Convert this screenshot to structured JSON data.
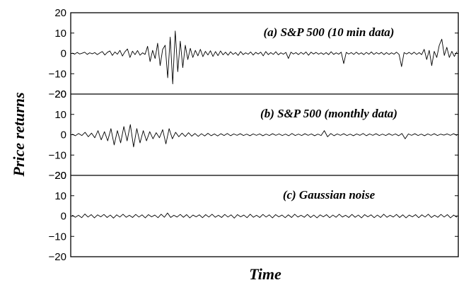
{
  "chart_data": {
    "type": "line",
    "xlabel": "Time",
    "ylabel": "Price returns",
    "panels": [
      {
        "title": "(a) S&P 500 (10 min data)",
        "ylim": [
          -20,
          20
        ],
        "yticks": [
          "20",
          "10",
          "0",
          "−10",
          "−20"
        ],
        "series": [
          {
            "values": [
              0.2,
              -0.4,
              0.5,
              -0.3,
              0.1,
              0.6,
              -0.5,
              0.3,
              -0.2,
              0.4,
              -0.6,
              0.2,
              0.9,
              -0.8,
              0.5,
              1.2,
              -1,
              0.7,
              -0.4,
              1.5,
              -1.3,
              0.8,
              2.2,
              -2,
              1.1,
              -0.6,
              1.4,
              -0.9,
              0.3,
              -0.5,
              3.5,
              -4,
              1.5,
              -2.5,
              5,
              -6,
              2,
              4,
              -12,
              8,
              -15,
              11,
              -9,
              6,
              -7,
              4,
              -3,
              2.5,
              -2,
              1.5,
              -1.2,
              2,
              -1.6,
              1,
              -0.8,
              1.3,
              -1.5,
              0.9,
              -1.1,
              1.2,
              -0.7,
              0.6,
              -0.9,
              0.8,
              -0.5,
              0.4,
              -1,
              0.9,
              -0.6,
              0.3,
              -0.4,
              0.7,
              -0.8,
              0.5,
              -0.3,
              0.6,
              -1.2,
              0.9,
              -0.6,
              0.4,
              -0.5,
              0.8,
              -0.7,
              0.3,
              -0.4,
              0.5,
              -2.5,
              0.6,
              -0.3,
              0.4,
              -0.6,
              0.5,
              -0.4,
              0.7,
              -0.9,
              0.6,
              -0.3,
              0.5,
              -0.4,
              0.3,
              -0.5,
              0.4,
              -0.6,
              0.8,
              -0.5,
              0.3,
              -0.4,
              0.6,
              -5,
              0.5,
              -0.3,
              0.4,
              -0.5,
              0.6,
              -0.4,
              0.3,
              -0.6,
              0.5,
              -0.4,
              0.7,
              -0.5,
              0.4,
              -0.3,
              0.5,
              -0.6,
              0.4,
              -0.5,
              0.3,
              -0.4,
              0.6,
              -0.5,
              -6.5,
              0.4,
              -0.3,
              0.5,
              -0.4,
              0.6,
              -0.5,
              0.4,
              -0.6,
              2,
              -3,
              1.5,
              -6,
              1,
              -2,
              4,
              7,
              -1,
              3,
              -2,
              1,
              -1.5,
              0.8
            ]
          }
        ]
      },
      {
        "title": "(b) S&P 500 (monthly data)",
        "ylim": [
          -20,
          20
        ],
        "yticks": [
          "20",
          "10",
          "0",
          "−10",
          "−20"
        ],
        "series": [
          {
            "values": [
              0.3,
              -0.5,
              0.6,
              -0.4,
              1.2,
              -1,
              0.8,
              -1.5,
              2,
              -2.5,
              1.5,
              -3,
              3,
              -5,
              2,
              -4,
              4,
              -3,
              5,
              -6,
              3,
              -4,
              2,
              -3,
              1.5,
              -2,
              1,
              -1.5,
              2.5,
              -4.5,
              3,
              -2,
              1.2,
              -1,
              0.8,
              -0.9,
              1,
              -0.7,
              0.6,
              -0.8,
              0.5,
              -0.6,
              0.7,
              -0.5,
              0.4,
              -0.6,
              0.5,
              -0.4,
              0.6,
              -0.5,
              0.4,
              -0.3,
              0.5,
              -0.4,
              0.3,
              -0.5,
              0.4,
              -0.3,
              0.4,
              -0.5,
              0.3,
              -0.4,
              0.5,
              -0.3,
              0.4,
              -0.4,
              0.3,
              -0.5,
              0.6,
              -0.4,
              0.3,
              -0.4,
              0.5,
              -0.3,
              0.4,
              -0.5,
              0.3,
              -0.4,
              2,
              -1,
              0.6,
              -0.5,
              0.4,
              -0.3,
              0.5,
              -0.4,
              0.3,
              -0.5,
              0.4,
              -0.3,
              0.6,
              -0.5,
              0.4,
              -0.3,
              0.5,
              -0.4,
              0.3,
              -0.4,
              0.5,
              -0.3,
              0.4,
              -0.5,
              0.6,
              -2,
              0.4,
              -0.3,
              0.5,
              -0.4,
              0.3,
              -0.5,
              0.4,
              -0.3,
              0.5,
              -0.4,
              0.3,
              -0.2,
              0.4,
              -0.3,
              0.5,
              -0.4
            ]
          }
        ]
      },
      {
        "title": "(c) Gaussian noise",
        "ylim": [
          -20,
          20
        ],
        "yticks": [
          "20",
          "10",
          "0",
          "−10",
          "−20"
        ],
        "series": [
          {
            "values": [
              0.5,
              -0.6,
              0.4,
              -0.8,
              1,
              -0.5,
              0.7,
              -0.9,
              0.6,
              -0.4,
              0.8,
              -0.7,
              0.5,
              -1,
              0.6,
              -0.5,
              0.9,
              -0.6,
              0.4,
              -0.7,
              0.8,
              -0.5,
              0.6,
              -0.9,
              0.7,
              -0.4,
              0.5,
              -0.8,
              0.9,
              -0.6,
              1.5,
              -0.7,
              0.4,
              -0.5,
              0.8,
              -0.6,
              0.7,
              -0.9,
              0.5,
              -0.4,
              0.6,
              -0.8,
              0.7,
              -0.5,
              0.9,
              -0.6,
              0.4,
              -0.7,
              0.8,
              -0.5,
              0.6,
              -1,
              0.7,
              -0.4,
              0.5,
              -0.8,
              0.9,
              -0.6,
              0.4,
              -0.7,
              0.8,
              -0.5,
              0.6,
              -0.9,
              0.7,
              -0.4,
              0.5,
              -0.8,
              0.6,
              -0.7,
              0.9,
              -0.5,
              0.4,
              -0.6,
              0.8,
              -0.7,
              0.5,
              -0.9,
              0.6,
              -0.4,
              0.7,
              -0.8,
              0.5,
              -0.6,
              0.9,
              -0.5,
              0.4,
              -0.7,
              0.8,
              -0.6,
              0.5,
              -0.9,
              0.7,
              -0.4,
              0.6,
              -0.8,
              0.5,
              -0.7,
              0.9,
              -0.6,
              0.4,
              -0.5,
              0.8,
              -0.7,
              0.6,
              -0.9,
              0.5,
              -0.4,
              0.7,
              -0.8,
              0.6,
              -0.5,
              0.9,
              -0.7,
              0.4,
              -0.6,
              0.8,
              -0.5,
              0.7,
              -0.9,
              0.5,
              -0.6
            ]
          }
        ]
      }
    ]
  }
}
